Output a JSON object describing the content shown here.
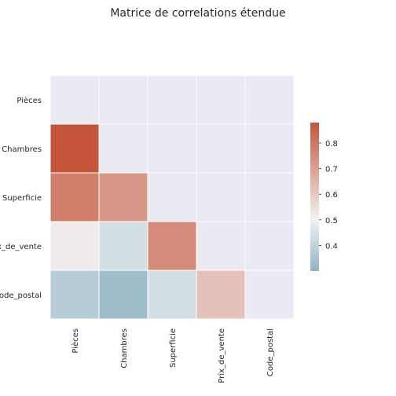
{
  "chart_data": {
    "type": "heatmap",
    "title": "Matrice de correlations étendue",
    "labels": [
      "Pièces",
      "Chambres",
      "Superficie",
      "Prix_de_vente",
      "Code_postal"
    ],
    "matrix": [
      [
        null,
        null,
        null,
        null,
        null
      ],
      [
        0.88,
        null,
        null,
        null,
        null
      ],
      [
        0.78,
        0.72,
        null,
        null,
        null
      ],
      [
        0.52,
        0.44,
        0.75,
        null,
        null
      ],
      [
        0.38,
        0.33,
        0.44,
        0.62,
        null
      ]
    ],
    "mask": "upper-triangle",
    "colorbar": {
      "min": 0.3,
      "max": 0.88,
      "ticks": [
        "0.4",
        "0.5",
        "0.6",
        "0.7",
        "0.8"
      ],
      "colors": {
        "low": "#92b4c5",
        "mid": "#f2f2f2",
        "high": "#c4553a"
      }
    },
    "masked_color": "#eaeaf2",
    "grid": false,
    "colorbar_position": "right"
  }
}
